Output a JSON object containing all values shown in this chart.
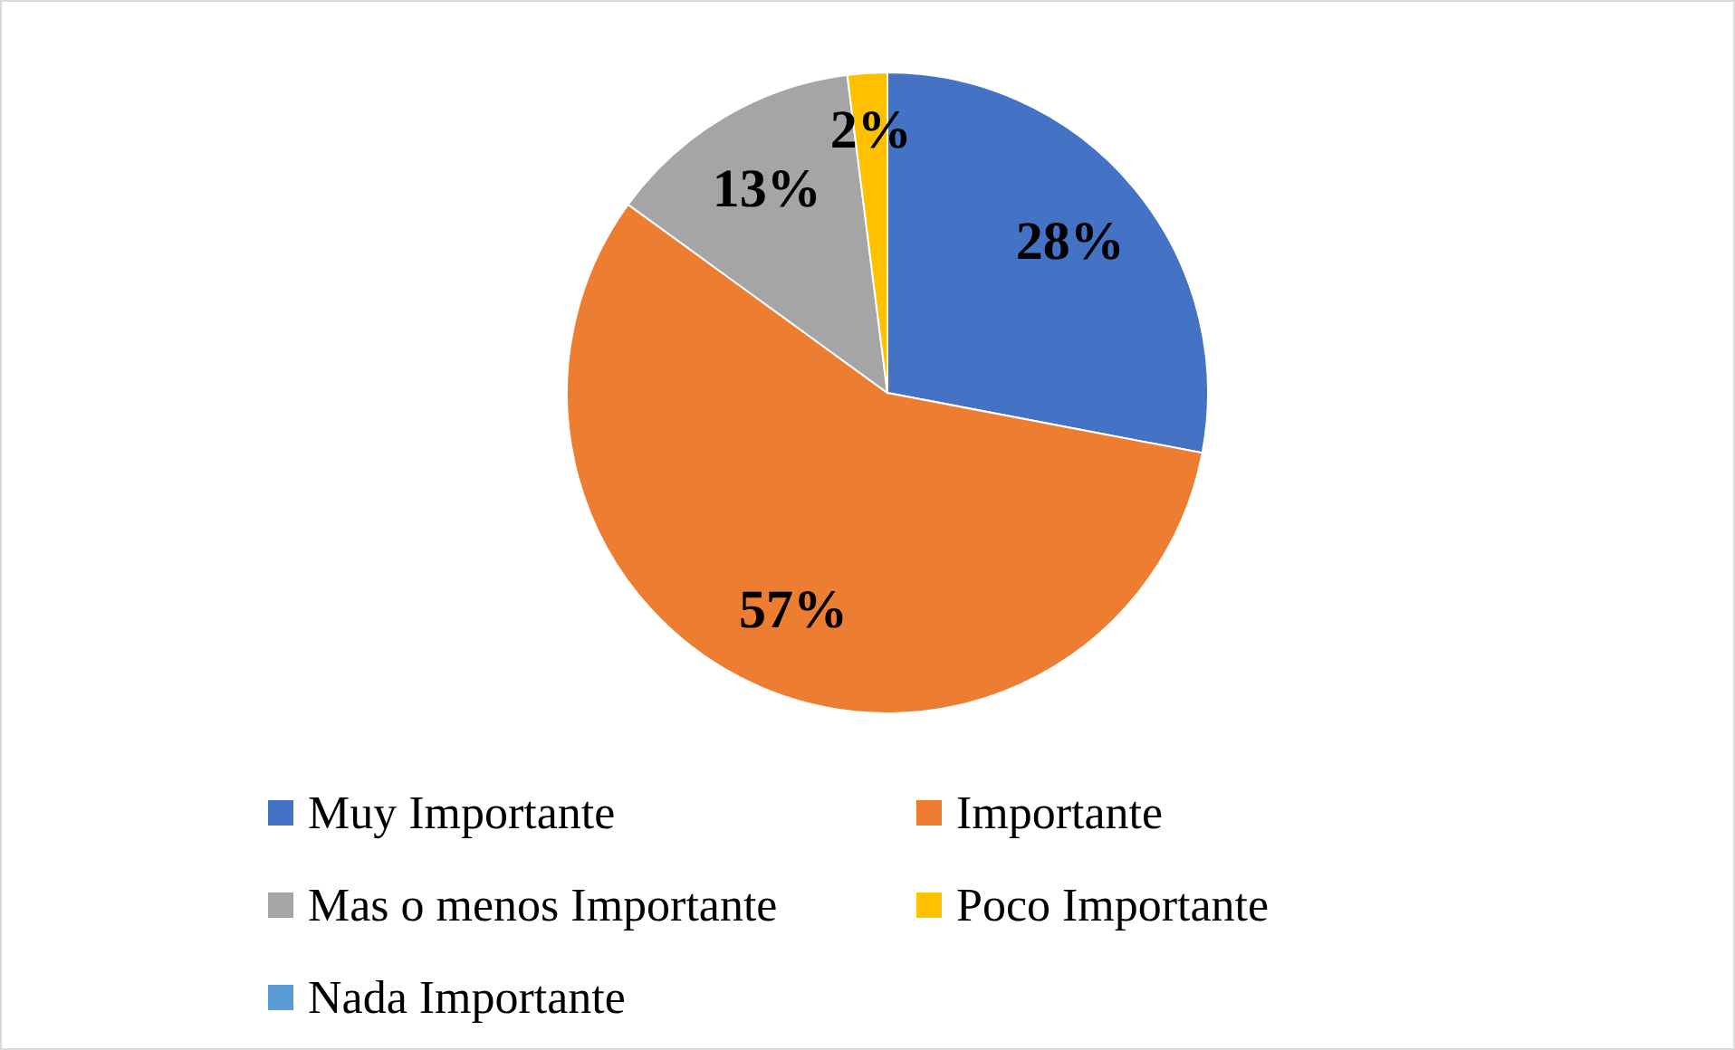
{
  "chart_data": {
    "type": "pie",
    "categories": [
      "Muy Importante",
      "Importante",
      "Mas o menos Importante",
      "Poco Importante",
      "Nada Importante"
    ],
    "values": [
      28,
      57,
      13,
      2,
      0
    ],
    "colors": [
      "#4472c4",
      "#ed7d31",
      "#a5a5a5",
      "#ffc000",
      "#5b9bd5"
    ],
    "value_labels": [
      "28%",
      "57%",
      "13%",
      "2%",
      null
    ],
    "legend": "bottom"
  }
}
